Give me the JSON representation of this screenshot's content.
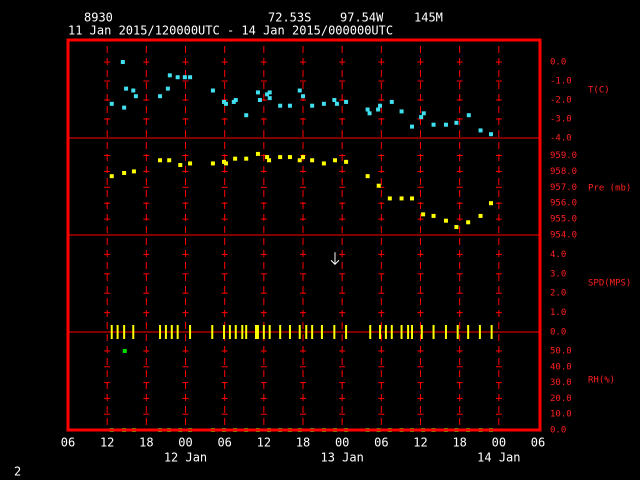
{
  "header": {
    "station": "8930",
    "lat": "72.53S",
    "lon": "97.54W",
    "elev": "145M",
    "period": "11 Jan 2015/120000UTC - 14 Jan 2015/000000UTC",
    "page": "2"
  },
  "x_axis": {
    "xlim": [
      0,
      72
    ],
    "xticks": [
      {
        "value": 0,
        "label": "06"
      },
      {
        "value": 6,
        "label": "12"
      },
      {
        "value": 12,
        "label": "18"
      },
      {
        "value": 18,
        "label": "00"
      },
      {
        "value": 24,
        "label": "06"
      },
      {
        "value": 30,
        "label": "12"
      },
      {
        "value": 36,
        "label": "18"
      },
      {
        "value": 42,
        "label": "00"
      },
      {
        "value": 48,
        "label": "06"
      },
      {
        "value": 54,
        "label": "12"
      },
      {
        "value": 60,
        "label": "18"
      },
      {
        "value": 66,
        "label": "00"
      },
      {
        "value": 72,
        "label": "06"
      }
    ],
    "date_labels": [
      {
        "value": 18,
        "label": "12 Jan"
      },
      {
        "value": 42,
        "label": "13 Jan"
      },
      {
        "value": 66,
        "label": "14 Jan"
      }
    ],
    "grid": true
  },
  "chart_data": [
    {
      "type": "scatter",
      "ylabel": "T(C)",
      "ylim": [
        -4,
        1.16
      ],
      "yticks": [
        {
          "value": 0,
          "label": "0.0"
        },
        {
          "value": -1,
          "label": "-1.0"
        },
        {
          "value": -2,
          "label": "-2.0"
        },
        {
          "value": -3,
          "label": "-3.0"
        },
        {
          "value": -4,
          "label": "-4.0"
        }
      ],
      "series": [
        {
          "color": "#40e0f0",
          "marker": "square",
          "x": [
            6.7,
            8.4,
            8.6,
            8.9,
            10,
            10.4,
            14.1,
            15.3,
            15.6,
            16.8,
            17.9,
            18.7,
            22.2,
            23.9,
            24.2,
            25.4,
            25.7,
            27.3,
            29.1,
            29.4,
            30.5,
            30.9,
            30.9,
            32.5,
            34,
            35.5,
            36,
            37.4,
            39.2,
            40.8,
            41.2,
            42.6,
            45.9,
            46.2,
            47.5,
            47.8,
            49.6,
            51.1,
            52.7,
            54.1,
            54.5,
            56,
            57.9,
            59.5,
            61.4,
            63.2,
            64.8
          ],
          "values": [
            -2.2,
            0,
            -2.4,
            -1.4,
            -1.5,
            -1.8,
            -1.8,
            -1.4,
            -0.7,
            -0.8,
            -0.8,
            -0.8,
            -1.5,
            -2.1,
            -2.2,
            -2.1,
            -2,
            -2.8,
            -1.6,
            -2,
            -1.7,
            -1.6,
            -1.9,
            -2.3,
            -2.3,
            -1.5,
            -1.8,
            -2.3,
            -2.2,
            -2,
            -2.2,
            -2.1,
            -2.5,
            -2.7,
            -2.5,
            -2.3,
            -2.1,
            -2.6,
            -3.4,
            -2.9,
            -2.7,
            -3.3,
            -3.3,
            -3.2,
            -2.8,
            -3.6,
            -3.8
          ]
        }
      ]
    },
    {
      "type": "scatter",
      "ylabel": "Pre (mb)",
      "ylim": [
        954,
        960.1
      ],
      "yticks": [
        {
          "value": 959,
          "label": "959.0"
        },
        {
          "value": 958,
          "label": "958.0"
        },
        {
          "value": 957,
          "label": "957.0"
        },
        {
          "value": 956,
          "label": "956.0"
        },
        {
          "value": 955,
          "label": "955.0"
        },
        {
          "value": 954,
          "label": "954.0"
        }
      ],
      "series": [
        {
          "color": "#ffff00",
          "marker": "square",
          "x": [
            6.7,
            8.6,
            10.1,
            14.1,
            15.5,
            17.2,
            18.7,
            22.2,
            23.9,
            24.2,
            25.6,
            27.3,
            29.1,
            30.5,
            30.8,
            32.5,
            34,
            35.5,
            36,
            37.4,
            39.2,
            40.9,
            42.6,
            45.9,
            47.6,
            49.3,
            51.1,
            52.7,
            54.4,
            56,
            57.9,
            59.5,
            61.3,
            63.2,
            64.8
          ],
          "values": [
            957.7,
            957.9,
            958,
            958.7,
            958.7,
            958.4,
            958.5,
            958.5,
            958.6,
            958.5,
            958.8,
            958.8,
            959.1,
            958.9,
            958.7,
            958.9,
            958.9,
            958.7,
            958.9,
            958.7,
            958.5,
            958.7,
            958.6,
            957.7,
            957.1,
            956.3,
            956.3,
            956.3,
            955.3,
            955.2,
            954.9,
            954.5,
            954.8,
            955.2,
            956
          ]
        }
      ]
    },
    {
      "type": "scatter",
      "ylabel": "SPD(MPS)",
      "ylim": [
        0,
        5
      ],
      "yticks": [
        {
          "value": 4,
          "label": "4.0"
        },
        {
          "value": 3,
          "label": "3.0"
        },
        {
          "value": 2,
          "label": "2.0"
        },
        {
          "value": 1,
          "label": "1.0"
        },
        {
          "value": 0,
          "label": "0.0"
        }
      ],
      "series": [
        {
          "color": "#ffff00",
          "marker": "tick",
          "x": [
            6.7,
            7.6,
            8.6,
            10,
            14.1,
            15,
            15.9,
            16.8,
            18.7,
            22.1,
            23.9,
            24.8,
            25.7,
            26.7,
            27.3,
            28.8,
            29.1,
            30,
            30.9,
            32.5,
            34,
            35.5,
            36.5,
            37.4,
            38.9,
            40.8,
            42.6,
            46.3,
            47.8,
            48.7,
            49.6,
            51.1,
            52.1,
            52.7,
            54.2,
            56,
            57.9,
            59.7,
            61.3,
            63.1,
            64.9
          ],
          "values": [
            0,
            0,
            0,
            0,
            0,
            0,
            0,
            0,
            0,
            0,
            0,
            0,
            0,
            0,
            0,
            0,
            0,
            0,
            0,
            0,
            0,
            0,
            0,
            0,
            0,
            0,
            0,
            0,
            0,
            0,
            0,
            0,
            0,
            0,
            0,
            0,
            0,
            0,
            0,
            0,
            0
          ]
        },
        {
          "color": "#ffffff",
          "marker": "arrow",
          "x": [
            40.9
          ],
          "values": [
            3.8
          ]
        }
      ]
    },
    {
      "type": "scatter",
      "ylabel": "RH(%)",
      "ylim": [
        0,
        62
      ],
      "yticks": [
        {
          "value": 50,
          "label": "50.0"
        },
        {
          "value": 40,
          "label": "40.0"
        },
        {
          "value": 30,
          "label": "30.0"
        },
        {
          "value": 20,
          "label": "20.0"
        },
        {
          "value": 10,
          "label": "10.0"
        },
        {
          "value": 0,
          "label": "0.0"
        }
      ],
      "series": [
        {
          "color": "#00dd00",
          "marker": "square",
          "x": [
            8.7
          ],
          "values": [
            50
          ]
        },
        {
          "color": "#00dd00",
          "marker": "square",
          "x": [
            6.7,
            8.6,
            10.1,
            14.1,
            15.5,
            17.2,
            18.7,
            22.2,
            23.9,
            25.6,
            27.3,
            29.1,
            30.8,
            32.5,
            34,
            35.5,
            37.4,
            39.2,
            40.9,
            42.6,
            45.9,
            47.6,
            49.3,
            51.1,
            52.7,
            54.4,
            56,
            57.9,
            59.5,
            61.3,
            63.2,
            64.8
          ],
          "values": [
            0,
            0,
            0,
            0,
            0,
            0,
            0,
            0,
            0,
            0,
            0,
            0,
            0,
            0,
            0,
            0,
            0,
            0,
            0,
            0,
            0,
            0,
            0,
            0,
            0,
            0,
            0,
            0,
            0,
            0,
            0,
            0
          ]
        }
      ]
    }
  ]
}
